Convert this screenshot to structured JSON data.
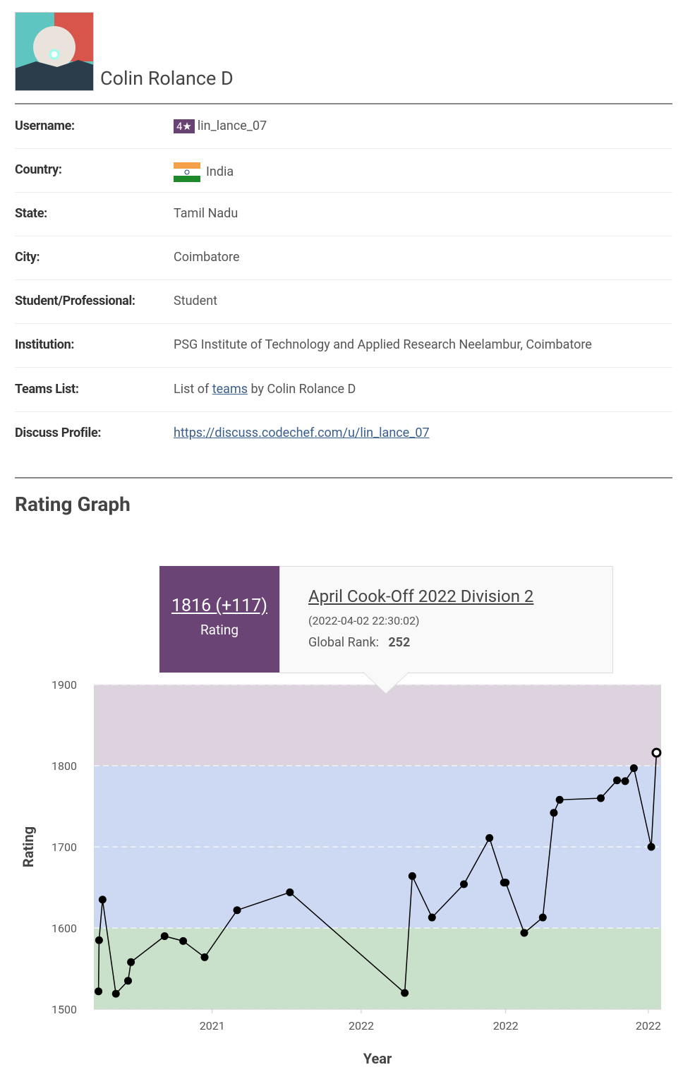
{
  "profile": {
    "name": "Colin Rolance D"
  },
  "details": [
    {
      "label": "Username:",
      "badge": "4★",
      "value": "lin_lance_07"
    },
    {
      "label": "Country:",
      "value": "India"
    },
    {
      "label": "State:",
      "value": "Tamil Nadu"
    },
    {
      "label": "City:",
      "value": "Coimbatore"
    },
    {
      "label": "Student/Professional:",
      "value": "Student"
    },
    {
      "label": "Institution:",
      "value": "PSG Institute of Technology and Applied Research Neelambur, Coimbatore"
    },
    {
      "label": "Teams List:",
      "value_parts": [
        "List of",
        "teams",
        "by Colin Rolance D"
      ]
    },
    {
      "label": "Discuss Profile:",
      "value": "https://discuss.codechef.com/u/lin_lance_07"
    }
  ],
  "rating_graph": {
    "title": "Rating Graph",
    "tooltip": {
      "rating": "1816 (+117)",
      "rating_label": "Rating",
      "contest": "April Cook-Off 2022 Division 2",
      "date": "(2022-04-02 22:30:02)",
      "rank_label": "Global Rank:",
      "rank": "252"
    }
  },
  "chart_data": {
    "type": "line",
    "x_label": "Year",
    "y_label": "Rating",
    "xlim": [
      2021.296,
      2022.274
    ],
    "xticks": [
      {
        "value": 2021.5,
        "label": "2021"
      },
      {
        "value": 2021.757,
        "label": "2022"
      },
      {
        "value": 2022.006,
        "label": "2022"
      },
      {
        "value": 2022.252,
        "label": "2022"
      }
    ],
    "ylim": [
      1500,
      1900
    ],
    "yticks": [
      1500,
      1600,
      1700,
      1800,
      1900
    ],
    "grid": true,
    "bands": [
      {
        "from": 1500,
        "to": 1600,
        "color": "#c9e0ca"
      },
      {
        "from": 1600,
        "to": 1800,
        "color": "#cdd9f2"
      },
      {
        "from": 1800,
        "to": 1900,
        "color": "#ddd3df"
      }
    ],
    "series": [
      {
        "color": "#000000",
        "x": [
          2021.304,
          2021.305,
          2021.311,
          2021.334,
          2021.355,
          2021.36,
          2021.418,
          2021.45,
          2021.487,
          2021.543,
          2021.634,
          2021.832,
          2021.845,
          2021.879,
          2021.934,
          2021.978,
          2022.003,
          2022.006,
          2022.038,
          2022.07,
          2022.089,
          2022.099,
          2022.17,
          2022.198,
          2022.212,
          2022.227,
          2022.257,
          2022.266
        ],
        "values": [
          1522,
          1585,
          1635,
          1519,
          1535,
          1558,
          1590,
          1584,
          1564,
          1622,
          1644,
          1520,
          1664,
          1613,
          1654,
          1711,
          1656,
          1656,
          1594,
          1613,
          1742,
          1758,
          1760,
          1782,
          1781,
          1797,
          1700,
          1816
        ]
      }
    ]
  }
}
